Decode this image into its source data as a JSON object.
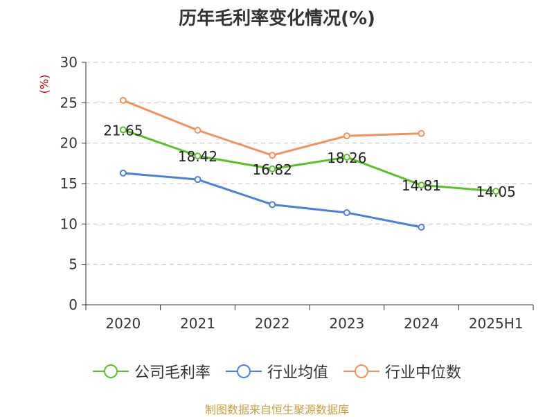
{
  "title": "历年毛利率变化情况(%)",
  "y_unit": "(%)",
  "source": "制图数据来自恒生聚源数据库",
  "colors": {
    "company": "#5ac126",
    "industry_avg": "#4a7fdb",
    "industry_median": "#f5905a",
    "grid": "#c0c0c0",
    "axis": "#333333"
  },
  "chart_data": {
    "type": "line",
    "categories": [
      "2020",
      "2021",
      "2022",
      "2023",
      "2024",
      "2025H1"
    ],
    "ylim": [
      0,
      30
    ],
    "yticks": [
      "0",
      "5",
      "10",
      "15",
      "20",
      "25",
      "30"
    ],
    "ylabel": "(%)",
    "grid": true,
    "legend_position": "bottom",
    "series": [
      {
        "name": "公司毛利率",
        "color": "#5ac126",
        "values": [
          21.65,
          18.42,
          16.82,
          18.26,
          14.81,
          14.05
        ],
        "labels": [
          "21.65",
          "18.42",
          "16.82",
          "18.26",
          "14.81",
          "14.05"
        ]
      },
      {
        "name": "行业均值",
        "color": "#4a7fdb",
        "values": [
          16.3,
          15.5,
          12.4,
          11.4,
          9.6,
          null
        ]
      },
      {
        "name": "行业中位数",
        "color": "#f5905a",
        "values": [
          25.3,
          21.6,
          18.5,
          20.9,
          21.2,
          null
        ]
      }
    ]
  }
}
